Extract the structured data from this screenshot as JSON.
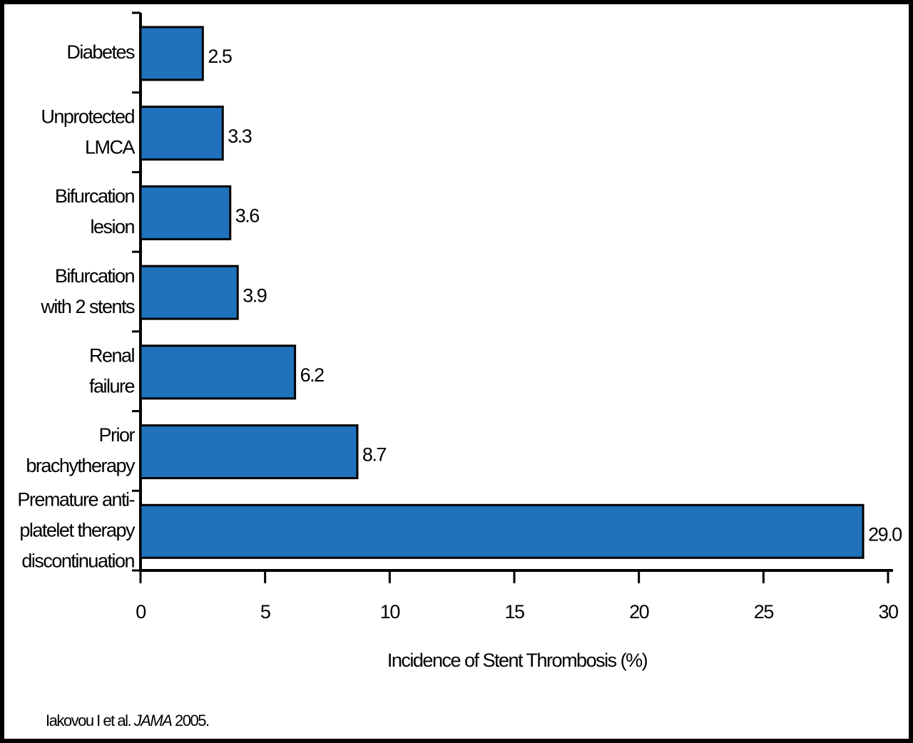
{
  "chart_data": {
    "type": "bar",
    "orientation": "horizontal",
    "categories": [
      [
        "Diabetes"
      ],
      [
        "Unprotected",
        "LMCA"
      ],
      [
        "Bifurcation",
        "lesion"
      ],
      [
        "Bifurcation",
        "with 2 stents"
      ],
      [
        "Renal",
        "failure"
      ],
      [
        "Prior",
        "brachytherapy"
      ],
      [
        "Premature anti-",
        "platelet therapy",
        "discontinuation"
      ]
    ],
    "values": [
      2.5,
      3.3,
      3.6,
      3.9,
      6.2,
      8.7,
      29.0
    ],
    "value_labels": [
      "2.5",
      "3.3",
      "3.6",
      "3.9",
      "6.2",
      "8.7",
      "29.0"
    ],
    "color": "#1f72bb",
    "xlim": [
      0,
      30
    ],
    "xticks": [
      0,
      5,
      10,
      15,
      20,
      25,
      30
    ],
    "xlabel": "Incidence of Stent Thrombosis (%)",
    "source": {
      "authors": "Iakovou I et al.",
      "journal": "JAMA",
      "year": "2005."
    }
  }
}
